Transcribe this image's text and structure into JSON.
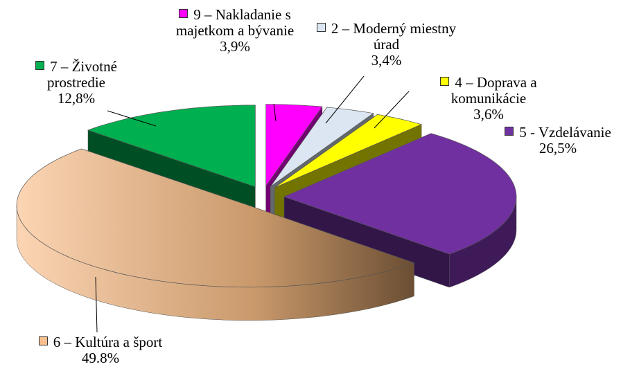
{
  "chart_data": {
    "type": "pie",
    "categories": [
      "9 – Nakladanie s majetkom a bývanie",
      "2 – Moderný miestny úrad",
      "4 – Doprava a komunikácie",
      "5 - Vzdelávanie",
      "6 – Kultúra a šport",
      "7 – Životné prostredie"
    ],
    "values": [
      3.9,
      3.4,
      3.6,
      26.5,
      49.8,
      12.8
    ],
    "value_labels": [
      "3,9%",
      "3,4%",
      "3,6%",
      "26,5%",
      "49.8%",
      "12,8%"
    ],
    "colors": [
      "#ff00ff",
      "#dce6f2",
      "#ffff00",
      "#7030a0",
      "#fac090",
      "#00b050"
    ]
  }
}
